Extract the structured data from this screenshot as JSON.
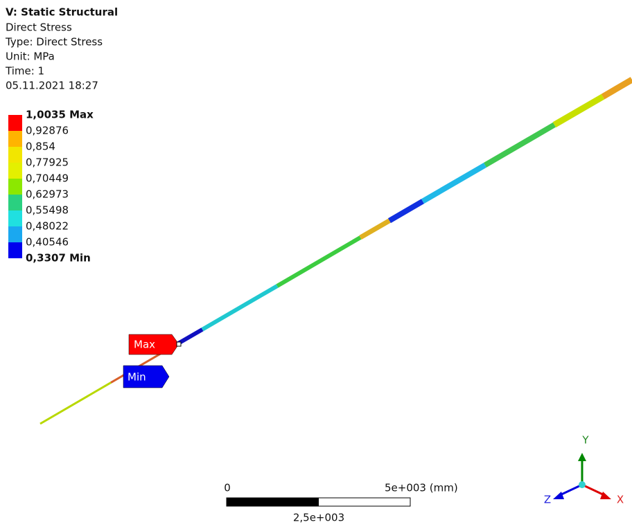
{
  "header": {
    "title": "V: Static Structural",
    "lines": [
      "Direct Stress",
      "Type: Direct Stress",
      "Unit: MPa",
      "Time: 1",
      "05.11.2021 18:27"
    ]
  },
  "legend": {
    "labels": [
      "1,0035 Max",
      "0,92876",
      "0,854",
      "0,77925",
      "0,70449",
      "0,62973",
      "0,55498",
      "0,48022",
      "0,40546",
      "0,3307 Min"
    ],
    "colors": [
      "#ff0000",
      "#ffb400",
      "#f2e600",
      "#e4f000",
      "#8ce800",
      "#2ad080",
      "#20e0e0",
      "#1aa8f0",
      "#0000ee"
    ]
  },
  "probes": {
    "max": "Max",
    "min": "Min"
  },
  "scale_bar": {
    "start": "0",
    "end": "5e+003 (mm)",
    "middle": "2,5e+003"
  },
  "triad": {
    "x": "X",
    "y": "Y",
    "z": "Z"
  }
}
